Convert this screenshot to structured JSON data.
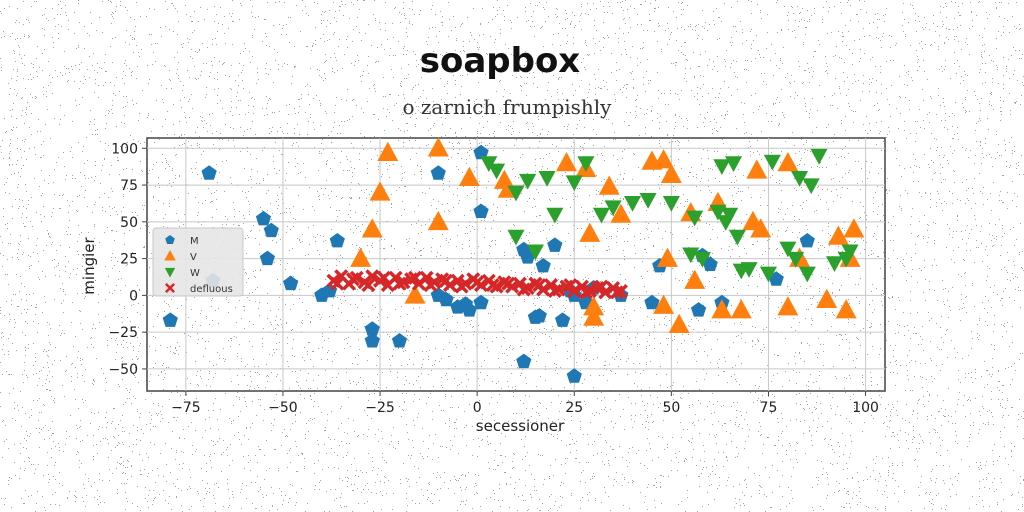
{
  "chart_data": {
    "type": "scatter",
    "title": "soapbox",
    "subtitle": "o zarnich frumpishly",
    "xlabel": "secessioner",
    "ylabel": "mingier",
    "xlim": [
      -85,
      105
    ],
    "ylim": [
      -65,
      107
    ],
    "xticks": [
      -75,
      -50,
      -25,
      0,
      25,
      50,
      75,
      100
    ],
    "yticks": [
      100,
      75,
      50,
      25,
      0,
      -25,
      -50
    ],
    "grid": true,
    "legend": "center-left",
    "series": [
      {
        "name": "M",
        "marker": "pentagon",
        "color": "#1f77b4",
        "points": [
          [
            -69,
            83
          ],
          [
            -55,
            52
          ],
          [
            -53,
            44
          ],
          [
            -54,
            25
          ],
          [
            -48,
            8
          ],
          [
            -79,
            -17
          ],
          [
            -68,
            10
          ],
          [
            -40,
            0
          ],
          [
            -38,
            3
          ],
          [
            -36,
            37
          ],
          [
            -27,
            -23
          ],
          [
            -27,
            -31
          ],
          [
            -20,
            -31
          ],
          [
            -10,
            83
          ],
          [
            1,
            97
          ],
          [
            1,
            57
          ],
          [
            -10,
            0
          ],
          [
            -8,
            -3
          ],
          [
            -5,
            -8
          ],
          [
            -2,
            -10
          ],
          [
            -3,
            -6
          ],
          [
            1,
            -5
          ],
          [
            12,
            31
          ],
          [
            13,
            26
          ],
          [
            17,
            20
          ],
          [
            16,
            -14
          ],
          [
            15,
            -15
          ],
          [
            20,
            34
          ],
          [
            22,
            -17
          ],
          [
            25,
            -55
          ],
          [
            12,
            -45
          ],
          [
            25,
            0
          ],
          [
            28,
            -5
          ],
          [
            24,
            3
          ],
          [
            30,
            5
          ],
          [
            37,
            0
          ],
          [
            47,
            20
          ],
          [
            45,
            -5
          ],
          [
            57,
            -10
          ],
          [
            63,
            -5
          ],
          [
            58,
            27
          ],
          [
            60,
            21
          ],
          [
            77,
            11
          ],
          [
            85,
            37
          ]
        ]
      },
      {
        "name": "V",
        "marker": "triangle",
        "color": "#ff7f0e",
        "points": [
          [
            -23,
            97
          ],
          [
            -10,
            100
          ],
          [
            -2,
            80
          ],
          [
            -27,
            45
          ],
          [
            -25,
            70
          ],
          [
            -10,
            50
          ],
          [
            8,
            72
          ],
          [
            7,
            78
          ],
          [
            23,
            90
          ],
          [
            28,
            86
          ],
          [
            34,
            74
          ],
          [
            29,
            42
          ],
          [
            37,
            55
          ],
          [
            45,
            91
          ],
          [
            48,
            92
          ],
          [
            50,
            82
          ],
          [
            49,
            25
          ],
          [
            55,
            56
          ],
          [
            56,
            10
          ],
          [
            52,
            -20
          ],
          [
            48,
            -7
          ],
          [
            62,
            63
          ],
          [
            63,
            -10
          ],
          [
            68,
            -10
          ],
          [
            71,
            50
          ],
          [
            73,
            45
          ],
          [
            72,
            85
          ],
          [
            80,
            90
          ],
          [
            83,
            25
          ],
          [
            80,
            -8
          ],
          [
            90,
            -3
          ],
          [
            93,
            40
          ],
          [
            96,
            25
          ],
          [
            95,
            -10
          ],
          [
            97,
            45
          ],
          [
            -30,
            25
          ],
          [
            -16,
            0
          ],
          [
            30,
            -8
          ],
          [
            30,
            -15
          ]
        ]
      },
      {
        "name": "W",
        "marker": "triangle-down",
        "color": "#2ca02c",
        "points": [
          [
            3,
            90
          ],
          [
            5,
            85
          ],
          [
            13,
            78
          ],
          [
            18,
            80
          ],
          [
            10,
            70
          ],
          [
            25,
            77
          ],
          [
            28,
            90
          ],
          [
            40,
            63
          ],
          [
            44,
            65
          ],
          [
            50,
            63
          ],
          [
            56,
            53
          ],
          [
            62,
            57
          ],
          [
            64,
            50
          ],
          [
            65,
            55
          ],
          [
            67,
            40
          ],
          [
            63,
            88
          ],
          [
            66,
            90
          ],
          [
            76,
            91
          ],
          [
            83,
            80
          ],
          [
            86,
            75
          ],
          [
            88,
            95
          ],
          [
            96,
            30
          ],
          [
            95,
            25
          ],
          [
            92,
            22
          ],
          [
            85,
            15
          ],
          [
            80,
            32
          ],
          [
            82,
            25
          ],
          [
            70,
            18
          ],
          [
            75,
            15
          ],
          [
            68,
            17
          ],
          [
            58,
            25
          ],
          [
            55,
            28
          ],
          [
            35,
            60
          ],
          [
            32,
            55
          ],
          [
            20,
            55
          ],
          [
            10,
            40
          ],
          [
            15,
            30
          ]
        ]
      },
      {
        "name": "defluous",
        "marker": "x",
        "color": "#d62728",
        "points": [
          [
            -37,
            10
          ],
          [
            -35,
            13
          ],
          [
            -33,
            8
          ],
          [
            -31,
            12
          ],
          [
            -29,
            9
          ],
          [
            -27,
            13
          ],
          [
            -25,
            10
          ],
          [
            -23,
            7
          ],
          [
            -21,
            12
          ],
          [
            -19,
            9
          ],
          [
            -17,
            11
          ],
          [
            -15,
            8
          ],
          [
            -13,
            12
          ],
          [
            -11,
            9
          ],
          [
            -9,
            11
          ],
          [
            -7,
            7
          ],
          [
            -5,
            10
          ],
          [
            -3,
            8
          ],
          [
            -1,
            11
          ],
          [
            1,
            7
          ],
          [
            3,
            10
          ],
          [
            5,
            6
          ],
          [
            7,
            9
          ],
          [
            9,
            6
          ],
          [
            11,
            8
          ],
          [
            13,
            5
          ],
          [
            15,
            8
          ],
          [
            17,
            4
          ],
          [
            19,
            7
          ],
          [
            21,
            4
          ],
          [
            23,
            6
          ],
          [
            25,
            3
          ],
          [
            27,
            6
          ],
          [
            29,
            3
          ],
          [
            31,
            5
          ],
          [
            33,
            2
          ],
          [
            35,
            5
          ],
          [
            37,
            3
          ],
          [
            -36,
            8
          ],
          [
            -28,
            7
          ],
          [
            -20,
            8
          ],
          [
            -12,
            7
          ],
          [
            -4,
            6
          ],
          [
            4,
            7
          ],
          [
            12,
            4
          ],
          [
            20,
            3
          ],
          [
            28,
            2
          ],
          [
            36,
            2
          ],
          [
            -32,
            11
          ],
          [
            -24,
            12
          ],
          [
            -16,
            12
          ],
          [
            -8,
            10
          ],
          [
            0,
            9
          ],
          [
            8,
            8
          ],
          [
            16,
            7
          ],
          [
            24,
            7
          ],
          [
            32,
            6
          ]
        ]
      }
    ]
  }
}
